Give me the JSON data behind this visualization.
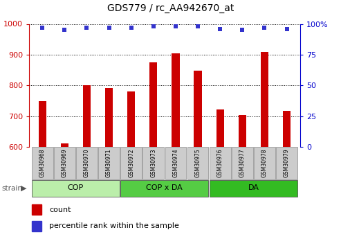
{
  "title": "GDS779 / rc_AA942670_at",
  "samples": [
    "GSM30968",
    "GSM30969",
    "GSM30970",
    "GSM30971",
    "GSM30972",
    "GSM30973",
    "GSM30974",
    "GSM30975",
    "GSM30976",
    "GSM30977",
    "GSM30978",
    "GSM30979"
  ],
  "counts": [
    748,
    612,
    800,
    792,
    780,
    875,
    905,
    848,
    722,
    705,
    908,
    718
  ],
  "percentiles": [
    97,
    95,
    97,
    97,
    97,
    98,
    98,
    98,
    96,
    95,
    97,
    96
  ],
  "ylim_left": [
    600,
    1000
  ],
  "ylim_right": [
    0,
    100
  ],
  "yticks_left": [
    600,
    700,
    800,
    900,
    1000
  ],
  "yticks_right": [
    0,
    25,
    50,
    75,
    100
  ],
  "bar_color": "#cc0000",
  "dot_color": "#3333cc",
  "groups": [
    {
      "label": "COP",
      "start": 0,
      "end": 3,
      "color": "#bbeeaa"
    },
    {
      "label": "COP x DA",
      "start": 4,
      "end": 7,
      "color": "#55cc44"
    },
    {
      "label": "DA",
      "start": 8,
      "end": 11,
      "color": "#33bb22"
    }
  ],
  "legend_count_label": "count",
  "legend_percentile_label": "percentile rank within the sample",
  "bar_color_dark": "#aa0000",
  "dot_color_blue": "#0000bb",
  "left_axis_color": "#cc0000",
  "right_axis_color": "#0000cc",
  "grid_color": "#000000",
  "label_box_color": "#cccccc",
  "label_box_edge": "#999999"
}
